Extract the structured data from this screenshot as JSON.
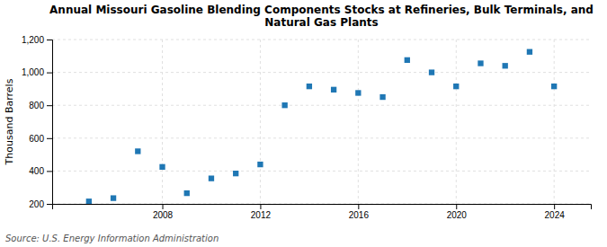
{
  "chart_data": {
    "type": "scatter",
    "title": "Annual Missouri Gasoline Blending Components Stocks at Refineries, Bulk Terminals, and\nNatural Gas Plants",
    "ylabel": "Thousand Barrels",
    "annotations": [
      "Source: U.S. Energy Information Administration"
    ],
    "x": [
      2005,
      2006,
      2007,
      2008,
      2009,
      2010,
      2011,
      2012,
      2013,
      2014,
      2015,
      2016,
      2017,
      2018,
      2019,
      2020,
      2021,
      2022,
      2023,
      2024
    ],
    "values": [
      215,
      235,
      520,
      425,
      265,
      355,
      385,
      440,
      800,
      915,
      895,
      875,
      850,
      1075,
      1000,
      915,
      1055,
      1040,
      1125,
      915
    ],
    "marker": "square",
    "xlim": [
      2003.5,
      2025.5
    ],
    "ylim": [
      200,
      1200
    ],
    "xticks": [
      2008,
      2012,
      2016,
      2020,
      2024
    ],
    "yticks": [
      200,
      400,
      600,
      800,
      {
        "value": 1000,
        "label": "1,000"
      },
      {
        "value": 1200,
        "label": "1,200"
      }
    ],
    "grid": true
  }
}
